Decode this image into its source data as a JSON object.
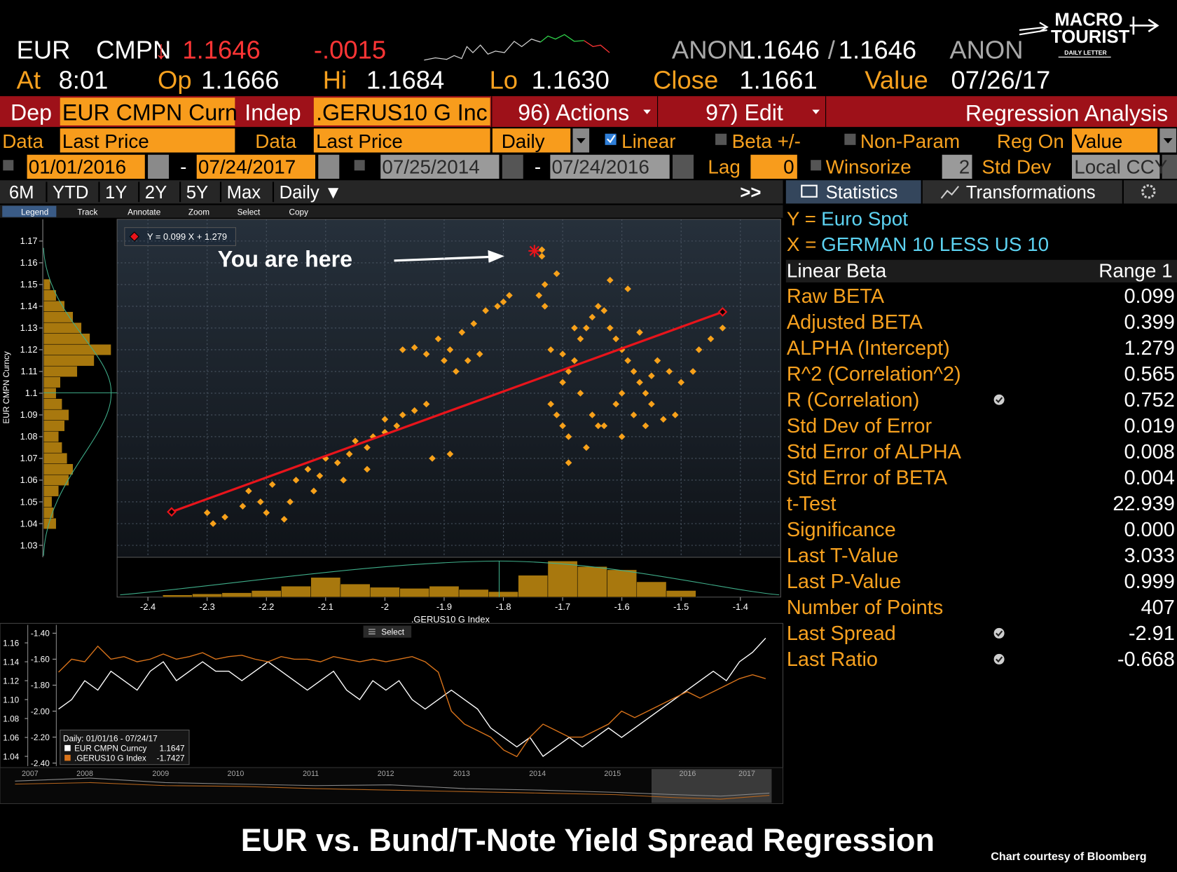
{
  "header": {
    "ticker": "EUR",
    "source": "CMPN",
    "arrow": "↓",
    "price": "1.1646",
    "change": "-.0015",
    "bid_source": "ANON",
    "bid": "1.1646",
    "sep": "/",
    "ask": "1.1646",
    "ask_source": "ANON",
    "at_label": "At",
    "time": "8:01",
    "op_label": "Op",
    "open": "1.1666",
    "hi_label": "Hi",
    "high": "1.1684",
    "lo_label": "Lo",
    "low": "1.1630",
    "close_label": "Close",
    "close": "1.1661",
    "value_label": "Value",
    "value_date": "07/26/17"
  },
  "logo": {
    "line1": "MACRO",
    "line2": "TOURIST",
    "tagline": "DAILY LETTER"
  },
  "command_bar": {
    "dep_label": "Dep",
    "dep": "EUR CMPN Curn",
    "indep_label": "Indep",
    "indep": ".GERUS10 G Inc",
    "actions": "96) Actions",
    "edit": "97) Edit",
    "function": "Regression Analysis"
  },
  "settings": {
    "data1_label": "Data",
    "data1": "Last Price",
    "data2_label": "Data",
    "data2": "Last Price",
    "frequency": "Daily",
    "linear": "Linear",
    "linear_checked": true,
    "beta": "Beta +/-",
    "nonparam": "Non-Param",
    "reg_on_label": "Reg On",
    "reg_on": "Value",
    "start1": "01/01/2016",
    "dash1": "-",
    "end1": "07/24/2017",
    "start2": "07/25/2014",
    "dash2": "-",
    "end2": "07/24/2016",
    "lag_label": "Lag",
    "lag": "0",
    "winsorize": "Winsorize",
    "std_dev_n": "2",
    "std_dev_label": "Std Dev",
    "currency": "Local CCY"
  },
  "range_tabs": [
    "6M",
    "YTD",
    "1Y",
    "2Y",
    "5Y",
    "Max",
    "Daily ▼"
  ],
  "expand": ">>",
  "panel_tabs": [
    "Statistics",
    "Transformations"
  ],
  "toolbar": [
    "Legend",
    "Track",
    "Annotate",
    "Zoom",
    "Select",
    "Copy"
  ],
  "statistics": {
    "y_label": "Y =",
    "y_name": "Euro Spot",
    "x_label": "X =",
    "x_name": "GERMAN 10 LESS US 10",
    "header": "Linear Beta",
    "range": "Range 1",
    "rows": [
      {
        "label": "Raw BETA",
        "value": "0.099"
      },
      {
        "label": "Adjusted BETA",
        "value": "0.399"
      },
      {
        "label": "ALPHA (Intercept)",
        "value": "1.279"
      },
      {
        "label": "R^2 (Correlation^2)",
        "value": "0.565"
      },
      {
        "label": "R (Correlation)",
        "value": "0.752",
        "icon": true
      },
      {
        "label": "Std Dev of Error",
        "value": "0.019"
      },
      {
        "label": "Std Error of ALPHA",
        "value": "0.008"
      },
      {
        "label": "Std Error of BETA",
        "value": "0.004"
      },
      {
        "label": "t-Test",
        "value": "22.939"
      },
      {
        "label": "Significance",
        "value": "0.000"
      },
      {
        "label": "Last T-Value",
        "value": "3.033"
      },
      {
        "label": "Last P-Value",
        "value": "0.999"
      },
      {
        "label": "Number of Points",
        "value": "407"
      },
      {
        "label": "Last Spread",
        "value": "-2.91",
        "icon": true
      },
      {
        "label": "Last Ratio",
        "value": "-0.668",
        "icon": true
      }
    ]
  },
  "chart_data": [
    {
      "type": "scatter",
      "legend": "Y = 0.099 X + 1.279",
      "annotation": "You are here",
      "ylabel": "EUR CMPN Curncy",
      "xlabel": ".GERUS10 G Index",
      "color": "#f7a11a",
      "x": [
        -2.3,
        -2.29,
        -2.27,
        -2.24,
        -2.2,
        -2.17,
        -2.23,
        -2.19,
        -2.15,
        -2.13,
        -2.11,
        -2.1,
        -2.08,
        -2.06,
        -2.05,
        -2.03,
        -2.02,
        -2.0,
        -2.0,
        -1.98,
        -1.97,
        -1.95,
        -1.93,
        -1.92,
        -1.89,
        -2.07,
        -2.12,
        -2.16,
        -2.21,
        -2.03,
        -1.97,
        -1.95,
        -1.93,
        -1.91,
        -1.9,
        -1.89,
        -1.87,
        -1.85,
        -1.83,
        -1.81,
        -1.79,
        -1.8,
        -1.88,
        -1.86,
        -1.84,
        -1.735,
        -1.735,
        -1.74,
        -1.73,
        -1.71,
        -1.73,
        -1.72,
        -1.7,
        -1.69,
        -1.68,
        -1.67,
        -1.66,
        -1.65,
        -1.64,
        -1.63,
        -1.62,
        -1.61,
        -1.6,
        -1.59,
        -1.58,
        -1.57,
        -1.56,
        -1.55,
        -1.54,
        -1.52,
        -1.5,
        -1.48,
        -1.47,
        -1.72,
        -1.71,
        -1.7,
        -1.69,
        -1.67,
        -1.65,
        -1.63,
        -1.61,
        -1.6,
        -1.58,
        -1.56,
        -1.53,
        -1.51,
        -1.62,
        -1.59,
        -1.64,
        -1.66,
        -1.69,
        -1.7,
        -1.6,
        -1.55,
        -1.68,
        -1.57,
        -1.43,
        -1.45
      ],
      "y": [
        1.045,
        1.04,
        1.043,
        1.048,
        1.045,
        1.042,
        1.055,
        1.058,
        1.06,
        1.065,
        1.062,
        1.07,
        1.068,
        1.072,
        1.078,
        1.075,
        1.08,
        1.082,
        1.088,
        1.085,
        1.09,
        1.092,
        1.095,
        1.07,
        1.072,
        1.06,
        1.055,
        1.05,
        1.05,
        1.065,
        1.12,
        1.121,
        1.118,
        1.125,
        1.115,
        1.12,
        1.128,
        1.132,
        1.138,
        1.14,
        1.145,
        1.142,
        1.11,
        1.115,
        1.118,
        1.166,
        1.163,
        1.145,
        1.15,
        1.155,
        1.14,
        1.12,
        1.118,
        1.11,
        1.115,
        1.125,
        1.13,
        1.135,
        1.14,
        1.138,
        1.13,
        1.125,
        1.12,
        1.115,
        1.11,
        1.105,
        1.1,
        1.108,
        1.115,
        1.11,
        1.105,
        1.11,
        1.12,
        1.095,
        1.09,
        1.085,
        1.08,
        1.1,
        1.09,
        1.085,
        1.095,
        1.08,
        1.09,
        1.085,
        1.088,
        1.09,
        1.152,
        1.148,
        1.085,
        1.075,
        1.068,
        1.105,
        1.1,
        1.095,
        1.13,
        1.128,
        1.13,
        1.125
      ],
      "fit": {
        "x": [
          -2.36,
          -1.43
        ],
        "y": [
          1.0454,
          1.1374
        ],
        "color": "#e8141b"
      },
      "xlim": [
        -2.452,
        -1.332
      ],
      "ylim": [
        1.0245,
        1.18
      ],
      "xticks": [
        -2.4,
        -2.3,
        -2.2,
        -2.1,
        -2,
        -1.9,
        -1.8,
        -1.7,
        -1.6,
        -1.5,
        -1.4
      ],
      "yticks": [
        1.03,
        1.04,
        1.05,
        1.06,
        1.07,
        1.08,
        1.09,
        1.1,
        1.11,
        1.12,
        1.13,
        1.14,
        1.15,
        1.16,
        1.17
      ],
      "grid": true,
      "hist_color": "#a8780e",
      "y_hist": {
        "bins": [
          1.0375,
          1.0425,
          1.0475,
          1.0525,
          1.0575,
          1.0625,
          1.0675,
          1.0725,
          1.0775,
          1.0825,
          1.0875,
          1.0925,
          1.0975,
          1.1025,
          1.1075,
          1.1125,
          1.1175,
          1.1225,
          1.1275,
          1.1325,
          1.1375,
          1.1425,
          1.1475,
          1.1525
        ],
        "counts": [
          15,
          12,
          10,
          18,
          30,
          35,
          28,
          22,
          18,
          25,
          30,
          22,
          15,
          20,
          40,
          60,
          80,
          55,
          45,
          35,
          25,
          15,
          8
        ]
      },
      "x_hist": {
        "bins": [
          -2.375,
          -2.325,
          -2.275,
          -2.225,
          -2.175,
          -2.125,
          -2.075,
          -2.025,
          -1.975,
          -1.925,
          -1.875,
          -1.825,
          -1.775,
          -1.725,
          -1.675,
          -1.625,
          -1.575,
          -1.525,
          -1.475
        ],
        "counts": [
          2,
          3,
          4,
          6,
          10,
          18,
          12,
          9,
          8,
          10,
          7,
          5,
          20,
          33,
          28,
          25,
          14,
          6
        ]
      }
    },
    {
      "type": "line",
      "select": "Select",
      "legend_title": "Daily: 01/01/16 - 07/24/17",
      "series": [
        {
          "name": "EUR CMPN Curncy",
          "last": "1.1647",
          "color": "#ffffff",
          "values": [
            1.09,
            1.1,
            1.12,
            1.11,
            1.13,
            1.12,
            1.11,
            1.13,
            1.14,
            1.12,
            1.13,
            1.14,
            1.13,
            1.13,
            1.12,
            1.13,
            1.14,
            1.13,
            1.12,
            1.11,
            1.12,
            1.13,
            1.11,
            1.1,
            1.12,
            1.11,
            1.12,
            1.1,
            1.09,
            1.1,
            1.11,
            1.1,
            1.09,
            1.07,
            1.06,
            1.05,
            1.06,
            1.04,
            1.05,
            1.06,
            1.05,
            1.06,
            1.07,
            1.06,
            1.07,
            1.08,
            1.09,
            1.1,
            1.11,
            1.12,
            1.13,
            1.12,
            1.14,
            1.15,
            1.165
          ]
        },
        {
          "name": ".GERUS10 G Index",
          "last": "-1.7427",
          "color": "#d9731a",
          "axis": "y2",
          "values": [
            -1.7,
            -1.6,
            -1.62,
            -1.5,
            -1.6,
            -1.58,
            -1.62,
            -1.6,
            -1.56,
            -1.6,
            -1.58,
            -1.55,
            -1.6,
            -1.58,
            -1.57,
            -1.6,
            -1.62,
            -1.58,
            -1.6,
            -1.6,
            -1.62,
            -1.58,
            -1.6,
            -1.62,
            -1.6,
            -1.62,
            -1.6,
            -1.58,
            -1.62,
            -1.7,
            -2.0,
            -2.1,
            -2.15,
            -2.2,
            -2.3,
            -2.35,
            -2.2,
            -2.1,
            -2.15,
            -2.2,
            -2.2,
            -2.15,
            -2.1,
            -2.0,
            -2.05,
            -2.0,
            -1.95,
            -1.9,
            -1.85,
            -1.9,
            -1.85,
            -1.8,
            -1.75,
            -1.72,
            -1.75
          ]
        }
      ],
      "ylim": [
        1.0297,
        1.179
      ],
      "yticks": [
        1.04,
        1.06,
        1.08,
        {
          "value": 1.1,
          "label": "1.10"
        },
        1.12,
        1.14,
        1.16
      ],
      "y2lim": [
        -2.423,
        -1.336
      ],
      "y2ticks": [
        {
          "value": -1.4,
          "label": "-1.40"
        },
        {
          "value": -1.6,
          "label": "-1.60"
        },
        {
          "value": -1.8,
          "label": "-1.80"
        },
        {
          "value": -2,
          "label": "-2.00"
        },
        {
          "value": -2.2,
          "label": "-2.20"
        },
        {
          "value": -2.4,
          "label": "-2.40"
        }
      ],
      "overview_years": [
        "2007",
        "2008",
        "2009",
        "2010",
        "2011",
        "2012",
        "2013",
        "2014",
        "2015",
        "2016",
        "2017"
      ]
    }
  ],
  "footer": {
    "title": "EUR vs. Bund/T-Note Yield Spread Regression",
    "credit": "Chart courtesy of Bloomberg"
  }
}
